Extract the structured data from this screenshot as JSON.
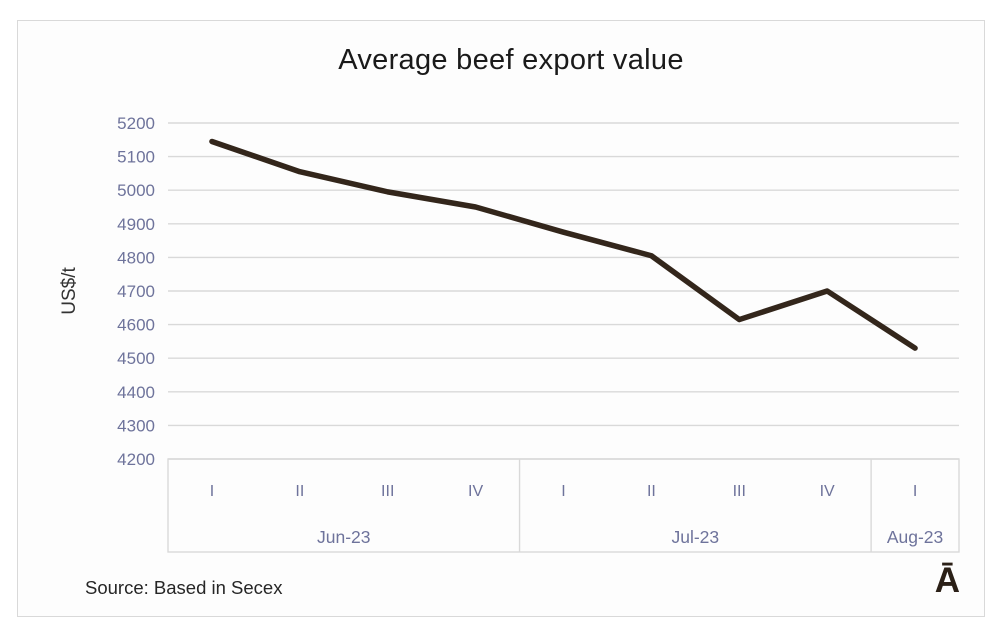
{
  "chart": {
    "title": "Average beef export value",
    "y_axis_title": "US$/t",
    "source": "Source: Based in Secex",
    "logo": "Ā",
    "colors": {
      "line": "#33261b",
      "grid": "#d9d9d9",
      "frame_border": "#d9d9d9",
      "tick_label": "#6e739b",
      "title_text": "#1a1a1a",
      "body_text": "#262626",
      "logo_text": "#2b2017"
    }
  },
  "chart_data": {
    "type": "line",
    "title": "Average beef export value",
    "xlabel": "",
    "ylabel": "US$/t",
    "ylim": [
      4200,
      5200
    ],
    "y_ticks": [
      5200,
      5100,
      5000,
      4900,
      4800,
      4700,
      4600,
      4500,
      4400,
      4300,
      4200
    ],
    "grid": true,
    "legend_position": "none",
    "x_groups": [
      {
        "label": "Jun-23",
        "weeks": [
          "I",
          "II",
          "III",
          "IV"
        ]
      },
      {
        "label": "Jul-23",
        "weeks": [
          "I",
          "II",
          "III",
          "IV"
        ]
      },
      {
        "label": "Aug-23",
        "weeks": [
          "I"
        ]
      }
    ],
    "categories": [
      "Jun-23 I",
      "Jun-23 II",
      "Jun-23 III",
      "Jun-23 IV",
      "Jul-23 I",
      "Jul-23 II",
      "Jul-23 III",
      "Jul-23 IV",
      "Aug-23 I"
    ],
    "series": [
      {
        "name": "Average beef export value (US$/t)",
        "values": [
          5145,
          5055,
          4995,
          4950,
          4875,
          4805,
          4615,
          4700,
          4530
        ]
      }
    ]
  }
}
